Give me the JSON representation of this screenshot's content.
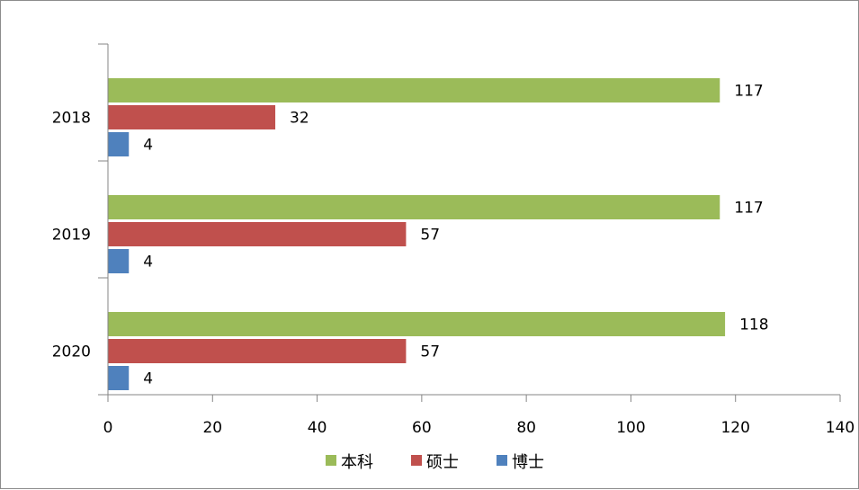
{
  "chart_data": {
    "type": "bar",
    "orientation": "horizontal",
    "categories": [
      "2018",
      "2019",
      "2020"
    ],
    "series": [
      {
        "name": "本科",
        "values": [
          117,
          117,
          118
        ],
        "color": "#9bbb59"
      },
      {
        "name": "硕士",
        "values": [
          32,
          57,
          57
        ],
        "color": "#c0504d"
      },
      {
        "name": "博士",
        "values": [
          4,
          4,
          4
        ],
        "color": "#4f81bd"
      }
    ],
    "xlim": [
      0,
      140
    ],
    "xticks": [
      "0",
      "20",
      "40",
      "60",
      "80",
      "100",
      "120",
      "140"
    ],
    "title": "",
    "xlabel": "",
    "ylabel": "",
    "grid": false,
    "data_labels": true,
    "legend_position": "bottom"
  }
}
